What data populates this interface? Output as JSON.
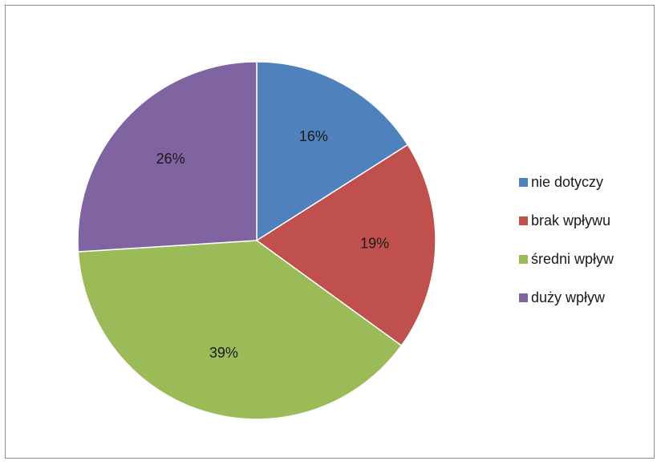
{
  "chart_data": {
    "type": "pie",
    "categories": [
      "nie dotyczy",
      "brak wpływu",
      "średni wpływ",
      "duży wpływ"
    ],
    "values": [
      16,
      19,
      39,
      26
    ],
    "value_labels": [
      "16%",
      "19%",
      "39%",
      "26%"
    ],
    "colors": [
      "#4f81bd",
      "#c0504d",
      "#9bbb59",
      "#8064a2"
    ],
    "start_angle_deg": 0,
    "direction": "clockwise",
    "legend_position": "right",
    "title": "",
    "xlabel": "",
    "ylabel": ""
  }
}
